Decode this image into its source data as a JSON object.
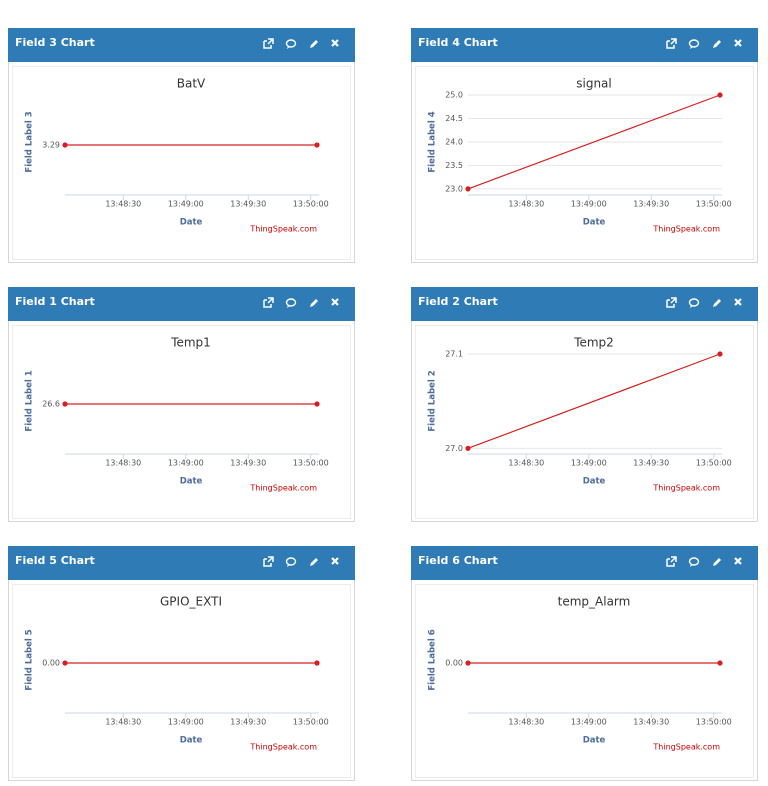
{
  "chart_data": [
    {
      "type": "line",
      "panel_title": "Field 3 Chart",
      "title": "BatV",
      "y_label": "Field Label 3",
      "x_label": "Date",
      "credit": "ThingSpeak.com",
      "x": [
        "13:48:02",
        "13:50:03"
      ],
      "values": [
        3.29,
        3.29
      ],
      "color": "#d62020",
      "xlim": [
        "13:48:02",
        "13:50:03"
      ],
      "xticks": [
        "13:48:30",
        "13:49:00",
        "13:49:30",
        "13:50:00"
      ],
      "ylim": [
        3.28,
        3.3
      ],
      "yticks": [
        3.29
      ]
    },
    {
      "type": "line",
      "panel_title": "Field 4 Chart",
      "title": "signal",
      "y_label": "Field Label 4",
      "x_label": "Date",
      "credit": "ThingSpeak.com",
      "x": [
        "13:48:02",
        "13:50:03"
      ],
      "values": [
        23,
        25
      ],
      "color": "#d62020",
      "xlim": [
        "13:48:02",
        "13:50:03"
      ],
      "xticks": [
        "13:48:30",
        "13:49:00",
        "13:49:30",
        "13:50:00"
      ],
      "ylim": [
        22.87,
        25
      ],
      "yticks": [
        {
          "value": 23,
          "label": "23.0"
        },
        23.5,
        {
          "value": 24,
          "label": "24.0"
        },
        24.5,
        {
          "value": 25,
          "label": "25.0"
        }
      ]
    },
    {
      "type": "line",
      "panel_title": "Field 1 Chart",
      "title": "Temp1",
      "y_label": "Field Label 1",
      "x_label": "Date",
      "credit": "ThingSpeak.com",
      "x": [
        "13:48:02",
        "13:50:03"
      ],
      "values": [
        26.6,
        26.6
      ],
      "color": "#d62020",
      "xlim": [
        "13:48:02",
        "13:50:03"
      ],
      "xticks": [
        "13:48:30",
        "13:49:00",
        "13:49:30",
        "13:50:00"
      ],
      "ylim": [
        26.5,
        26.7
      ],
      "yticks": [
        26.6
      ]
    },
    {
      "type": "line",
      "panel_title": "Field 2 Chart",
      "title": "Temp2",
      "y_label": "Field Label 2",
      "x_label": "Date",
      "credit": "ThingSpeak.com",
      "x": [
        "13:48:02",
        "13:50:03"
      ],
      "values": [
        27,
        27.1
      ],
      "color": "#d62020",
      "xlim": [
        "13:48:02",
        "13:50:03"
      ],
      "xticks": [
        "13:48:30",
        "13:49:00",
        "13:49:30",
        "13:50:00"
      ],
      "ylim": [
        26.994,
        27.1
      ],
      "yticks": [
        {
          "value": 27,
          "label": "27.0"
        },
        27.1
      ]
    },
    {
      "type": "line",
      "panel_title": "Field 5 Chart",
      "title": "GPIO_EXTI",
      "y_label": "Field Label 5",
      "x_label": "Date",
      "credit": "ThingSpeak.com",
      "x": [
        "13:48:02",
        "13:50:03"
      ],
      "values": [
        0,
        0
      ],
      "color": "#d62020",
      "xlim": [
        "13:48:02",
        "13:50:03"
      ],
      "xticks": [
        "13:48:30",
        "13:49:00",
        "13:49:30",
        "13:50:00"
      ],
      "ylim": [
        -1,
        1
      ],
      "yticks": [
        {
          "value": 0,
          "label": "0.00"
        }
      ]
    },
    {
      "type": "line",
      "panel_title": "Field 6 Chart",
      "title": "temp_Alarm",
      "y_label": "Field Label 6",
      "x_label": "Date",
      "credit": "ThingSpeak.com",
      "x": [
        "13:48:02",
        "13:50:03"
      ],
      "values": [
        0,
        0
      ],
      "color": "#d62020",
      "xlim": [
        "13:48:02",
        "13:50:03"
      ],
      "xticks": [
        "13:48:30",
        "13:49:00",
        "13:49:30",
        "13:50:00"
      ],
      "ylim": [
        -1,
        1
      ],
      "yticks": [
        {
          "value": 0,
          "label": "0.00"
        }
      ]
    }
  ]
}
